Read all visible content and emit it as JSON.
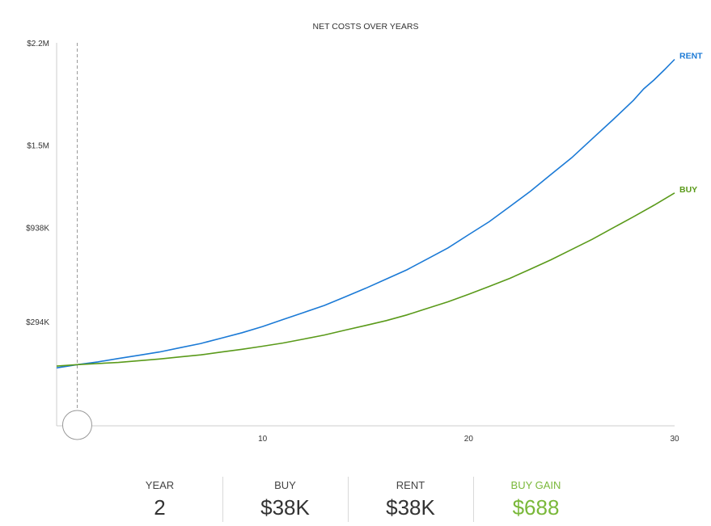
{
  "colors": {
    "rent": "#1b7ad6",
    "buy": "#5a9a1a",
    "gain": "#7ab83a",
    "axis": "#cccccc"
  },
  "chart_data": {
    "type": "line",
    "title": "NET COSTS OVER YEARS",
    "xlabel": "",
    "ylabel": "",
    "xlim": [
      0,
      30
    ],
    "ylim": [
      -418000,
      2200000
    ],
    "x_ticks": [
      10,
      20,
      30
    ],
    "x_tick_labels": [
      "10",
      "20",
      "30"
    ],
    "y_ticks": [
      294000,
      938000,
      1500000,
      2200000
    ],
    "y_tick_labels": [
      "$294K",
      "$938K",
      "$1.5M",
      "$2.2M"
    ],
    "grid": false,
    "legend": "end-of-line labels",
    "selected_year": 1,
    "series": [
      {
        "name": "RENT",
        "x": [
          0,
          1,
          2,
          3,
          4,
          5,
          6,
          7,
          8,
          9,
          10,
          11,
          12,
          13,
          14,
          15,
          16,
          17,
          18,
          19,
          20,
          21,
          22,
          23,
          24,
          25,
          26,
          27,
          28,
          28.5,
          29,
          29.5,
          30
        ],
        "values": [
          -22000,
          0,
          19000,
          42000,
          64000,
          87000,
          116000,
          145000,
          181000,
          218000,
          261000,
          309000,
          357000,
          405000,
          463000,
          522000,
          585000,
          648000,
          723000,
          798000,
          888000,
          977000,
          1081000,
          1185000,
          1300000,
          1414000,
          1544000,
          1673000,
          1807000,
          1885000,
          1946000,
          2015000,
          2087000
        ]
      },
      {
        "name": "BUY",
        "x": [
          0,
          1,
          2,
          3,
          4,
          5,
          6,
          7,
          8,
          9,
          10,
          11,
          12,
          13,
          14,
          15,
          16,
          17,
          18,
          19,
          20,
          21,
          22,
          23,
          24,
          25,
          26,
          27,
          28,
          29,
          30
        ],
        "values": [
          -10000,
          0,
          8000,
          15000,
          27000,
          39000,
          53000,
          67000,
          86000,
          105000,
          126000,
          148000,
          175000,
          203000,
          236000,
          268000,
          301000,
          340000,
          385000,
          430000,
          481000,
          535000,
          590000,
          653000,
          717000,
          787000,
          857000,
          934000,
          1011000,
          1090000,
          1174000
        ]
      }
    ]
  },
  "summary": {
    "year_label": "YEAR",
    "year_value": "2",
    "buy_label": "BUY",
    "buy_value": "$38K",
    "rent_label": "RENT",
    "rent_value": "$38K",
    "gain_label": "BUY GAIN",
    "gain_value": "$688"
  }
}
